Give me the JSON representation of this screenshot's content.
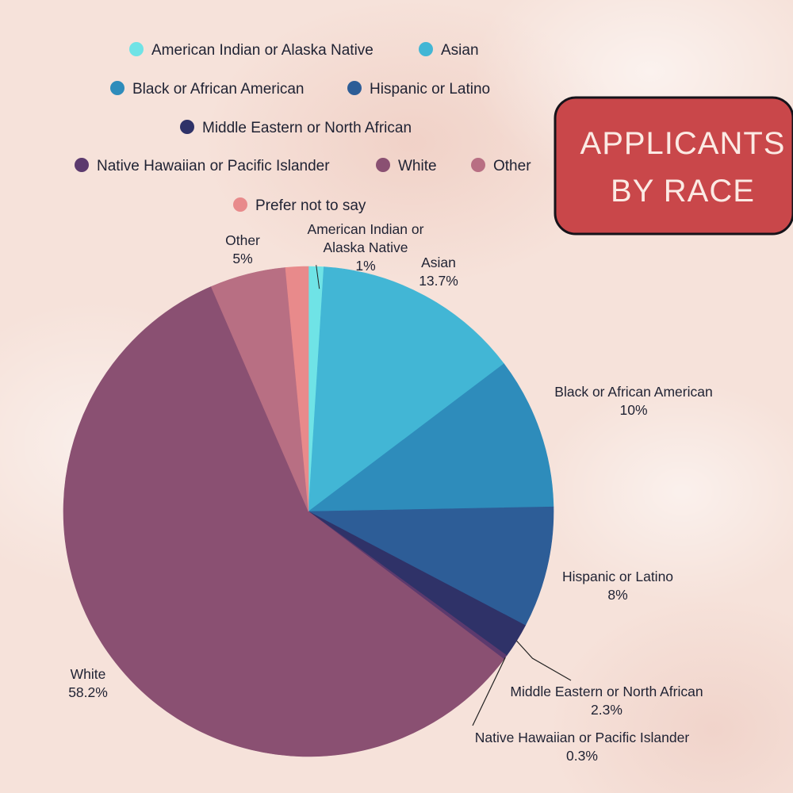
{
  "chart_data": {
    "type": "pie",
    "title": "APPLICANTS BY RACE",
    "title_lines": [
      "APPLICANTS",
      "BY RACE"
    ],
    "categories": [
      "American Indian or Alaska Native",
      "Asian",
      "Black or African American",
      "Hispanic or Latino",
      "Middle Eastern or North African",
      "Native Hawaiian or Pacific Islander",
      "White",
      "Other",
      "Prefer not to say"
    ],
    "values": [
      1,
      13.7,
      10,
      8,
      2.3,
      0.3,
      58.2,
      5,
      1.5
    ],
    "value_labels": [
      "1%",
      "13.7%",
      "10%",
      "8%",
      "2.3%",
      "0.3%",
      "58.2%",
      "5%",
      ""
    ],
    "slice_labels": [
      [
        "American Indian or",
        "Alaska Native"
      ],
      [
        "Asian"
      ],
      [
        "Black or African American"
      ],
      [
        "Hispanic or Latino"
      ],
      [
        "Middle Eastern or North African"
      ],
      [
        "Native Hawaiian or Pacific Islander"
      ],
      [
        "White"
      ],
      [
        "Other"
      ],
      []
    ],
    "colors": [
      "#6fe3e6",
      "#42b6d5",
      "#2e8cbb",
      "#2d5d97",
      "#2f3268",
      "#5c3a6e",
      "#8a5072",
      "#b86f83",
      "#e88a8b"
    ],
    "legend_position": "top",
    "title_box_color": "#c9474a"
  }
}
